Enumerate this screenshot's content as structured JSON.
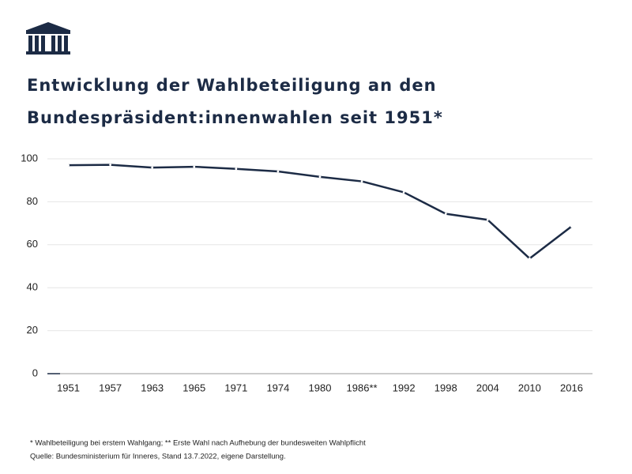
{
  "chart_data": {
    "type": "line",
    "title": [
      "Entwicklung der Wahlbeteiligung an den",
      "Bundespräsident:innenwahlen seit 1951*"
    ],
    "categories": [
      "1951",
      "1957",
      "1963",
      "1965",
      "1971",
      "1974",
      "1980",
      "1986**",
      "1992",
      "1998",
      "2004",
      "2010",
      "2016"
    ],
    "values": [
      97.0,
      97.2,
      95.9,
      96.3,
      95.3,
      94.1,
      91.6,
      89.5,
      84.4,
      74.4,
      71.6,
      53.6,
      68.5
    ],
    "color": "#1c2b45",
    "ylim": [
      0,
      100
    ],
    "yticks": [
      0,
      20,
      40,
      60,
      80,
      100
    ],
    "grid": true,
    "notes": [
      "* Wahlbeteiligung bei erstem Wahlgang; ** Erste Wahl nach Aufhebung der bundesweiten Wahlpflicht",
      "Quelle: Bundesministerium für Inneres, Stand 13.7.2022, eigene Darstellung."
    ]
  }
}
